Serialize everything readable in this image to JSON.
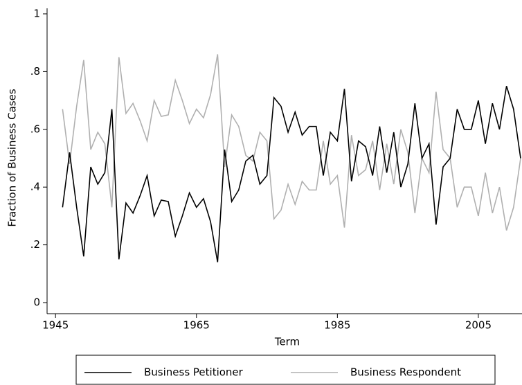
{
  "chart_data": {
    "type": "line",
    "x_label": "Term",
    "y_label": "Fraction of Business Cases",
    "x": [
      1946,
      1947,
      1948,
      1949,
      1950,
      1951,
      1952,
      1953,
      1954,
      1955,
      1956,
      1957,
      1958,
      1959,
      1960,
      1961,
      1962,
      1963,
      1964,
      1965,
      1966,
      1967,
      1968,
      1969,
      1970,
      1971,
      1972,
      1973,
      1974,
      1975,
      1976,
      1977,
      1978,
      1979,
      1980,
      1981,
      1982,
      1983,
      1984,
      1985,
      1986,
      1987,
      1988,
      1989,
      1990,
      1991,
      1992,
      1993,
      1994,
      1995,
      1996,
      1997,
      1998,
      1999,
      2000,
      2001,
      2002,
      2003,
      2004,
      2005,
      2006,
      2007,
      2008,
      2009,
      2010,
      2011
    ],
    "series": [
      {
        "name": "Business Petitioner",
        "color": "#000000",
        "values": [
          0.33,
          0.52,
          0.33,
          0.16,
          0.47,
          0.41,
          0.45,
          0.67,
          0.15,
          0.345,
          0.31,
          0.37,
          0.44,
          0.3,
          0.355,
          0.35,
          0.23,
          0.3,
          0.38,
          0.33,
          0.36,
          0.28,
          0.14,
          0.53,
          0.35,
          0.39,
          0.49,
          0.51,
          0.41,
          0.44,
          0.71,
          0.68,
          0.59,
          0.66,
          0.58,
          0.61,
          0.61,
          0.44,
          0.59,
          0.56,
          0.74,
          0.42,
          0.56,
          0.54,
          0.44,
          0.61,
          0.45,
          0.59,
          0.4,
          0.48,
          0.69,
          0.5,
          0.55,
          0.27,
          0.47,
          0.5,
          0.67,
          0.6,
          0.6,
          0.7,
          0.55,
          0.69,
          0.6,
          0.75,
          0.67,
          0.5
        ]
      },
      {
        "name": "Business Respondent",
        "color": "#b0b0b0",
        "values": [
          0.67,
          0.48,
          0.68,
          0.84,
          0.53,
          0.59,
          0.55,
          0.33,
          0.85,
          0.655,
          0.69,
          0.63,
          0.56,
          0.7,
          0.645,
          0.65,
          0.77,
          0.7,
          0.62,
          0.67,
          0.64,
          0.72,
          0.86,
          0.47,
          0.65,
          0.61,
          0.51,
          0.49,
          0.59,
          0.56,
          0.29,
          0.32,
          0.41,
          0.34,
          0.42,
          0.39,
          0.39,
          0.56,
          0.41,
          0.44,
          0.26,
          0.58,
          0.44,
          0.46,
          0.56,
          0.39,
          0.55,
          0.41,
          0.6,
          0.52,
          0.31,
          0.5,
          0.45,
          0.73,
          0.53,
          0.5,
          0.33,
          0.4,
          0.4,
          0.3,
          0.45,
          0.31,
          0.4,
          0.25,
          0.33,
          0.5
        ]
      }
    ],
    "xlim": [
      1944,
      2011
    ],
    "xticks": [
      1945,
      1965,
      1985,
      2005
    ],
    "ylim": [
      0,
      1
    ],
    "yticks": [
      0,
      {
        "value": 0.2,
        "label": ".2"
      },
      {
        "value": 0.4,
        "label": ".4"
      },
      {
        "value": 0.6,
        "label": ".6"
      },
      {
        "value": 0.8,
        "label": ".8"
      },
      1
    ],
    "legend": "bottom"
  }
}
